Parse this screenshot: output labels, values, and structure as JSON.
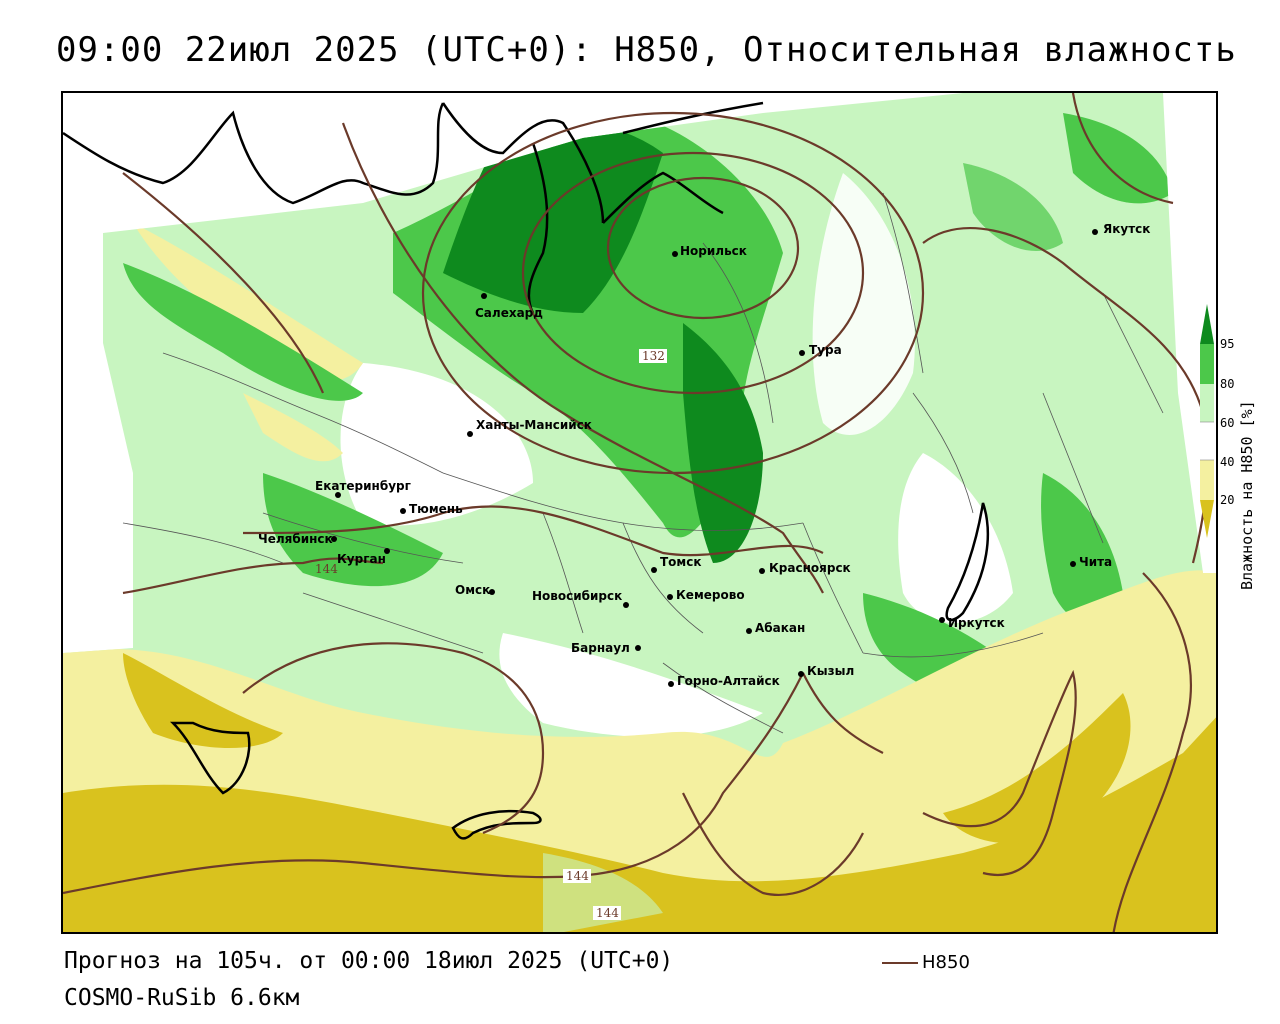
{
  "title": "09:00 22июл 2025 (UTC+0): H850, Относительная влажность",
  "forecast_text": "Прогноз на 105ч. от 00:00 18июл 2025 (UTC+0)",
  "model_text": "COSMO-RuSib 6.6км",
  "contour_legend_label": "H850",
  "colorbar": {
    "title": "Влажность на H850 [%]",
    "ticks": [
      "95",
      "80",
      "60",
      "40",
      "20"
    ],
    "colors": {
      "lt20": "#d9c21e",
      "20_40": "#f4f0a0",
      "40_60": "#ffffff",
      "60_80": "#c8f5c0",
      "80_95": "#4cc84a",
      "gt95": "#0e8a1e"
    }
  },
  "contour_labels": [
    "132",
    "144",
    "144",
    "144"
  ],
  "cities": [
    {
      "name": "Якутск"
    },
    {
      "name": "Норильск"
    },
    {
      "name": "Салехард"
    },
    {
      "name": "Тура"
    },
    {
      "name": "Ханты-Мансийск"
    },
    {
      "name": "Екатеринбург"
    },
    {
      "name": "Тюмень"
    },
    {
      "name": "Челябинск"
    },
    {
      "name": "Курган"
    },
    {
      "name": "Омск"
    },
    {
      "name": "Новосибирск"
    },
    {
      "name": "Томск"
    },
    {
      "name": "Кемерово"
    },
    {
      "name": "Красноярск"
    },
    {
      "name": "Барнаул"
    },
    {
      "name": "Абакан"
    },
    {
      "name": "Кызыл"
    },
    {
      "name": "Горно-Алтайск"
    },
    {
      "name": "Иркутск"
    },
    {
      "name": "Чита"
    }
  ]
}
